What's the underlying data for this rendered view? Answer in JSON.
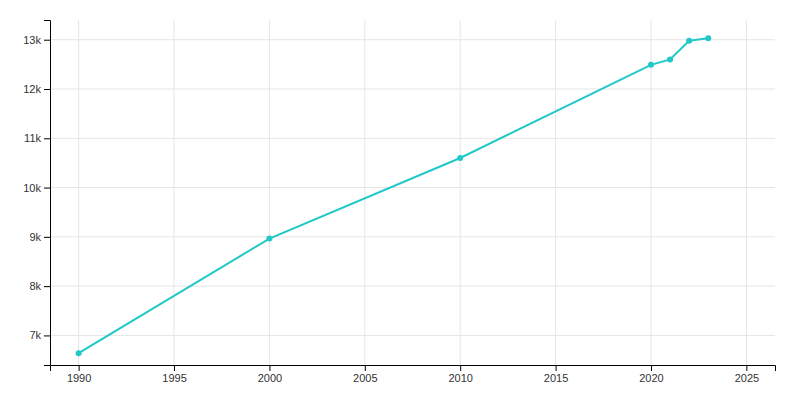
{
  "chart_data": {
    "type": "line",
    "x": [
      1990,
      2000,
      2010,
      2020,
      2021,
      2022,
      2023
    ],
    "values": [
      6640,
      8965,
      10600,
      12490,
      12600,
      12980,
      13030
    ],
    "color": "#20C8C8",
    "marker": "circle",
    "xlim": [
      1988.5,
      2026.5
    ],
    "ylim": [
      6400,
      13400
    ],
    "xticks": [
      1990,
      1995,
      2000,
      2005,
      2010,
      2015,
      2020,
      2025
    ],
    "yticks": [
      {
        "value": 7000,
        "label": "7k"
      },
      {
        "value": 8000,
        "label": "8k"
      },
      {
        "value": 9000,
        "label": "9k"
      },
      {
        "value": 10000,
        "label": "10k"
      },
      {
        "value": 11000,
        "label": "11k"
      },
      {
        "value": 12000,
        "label": "12k"
      },
      {
        "value": 13000,
        "label": "13k"
      }
    ],
    "grid": true
  }
}
